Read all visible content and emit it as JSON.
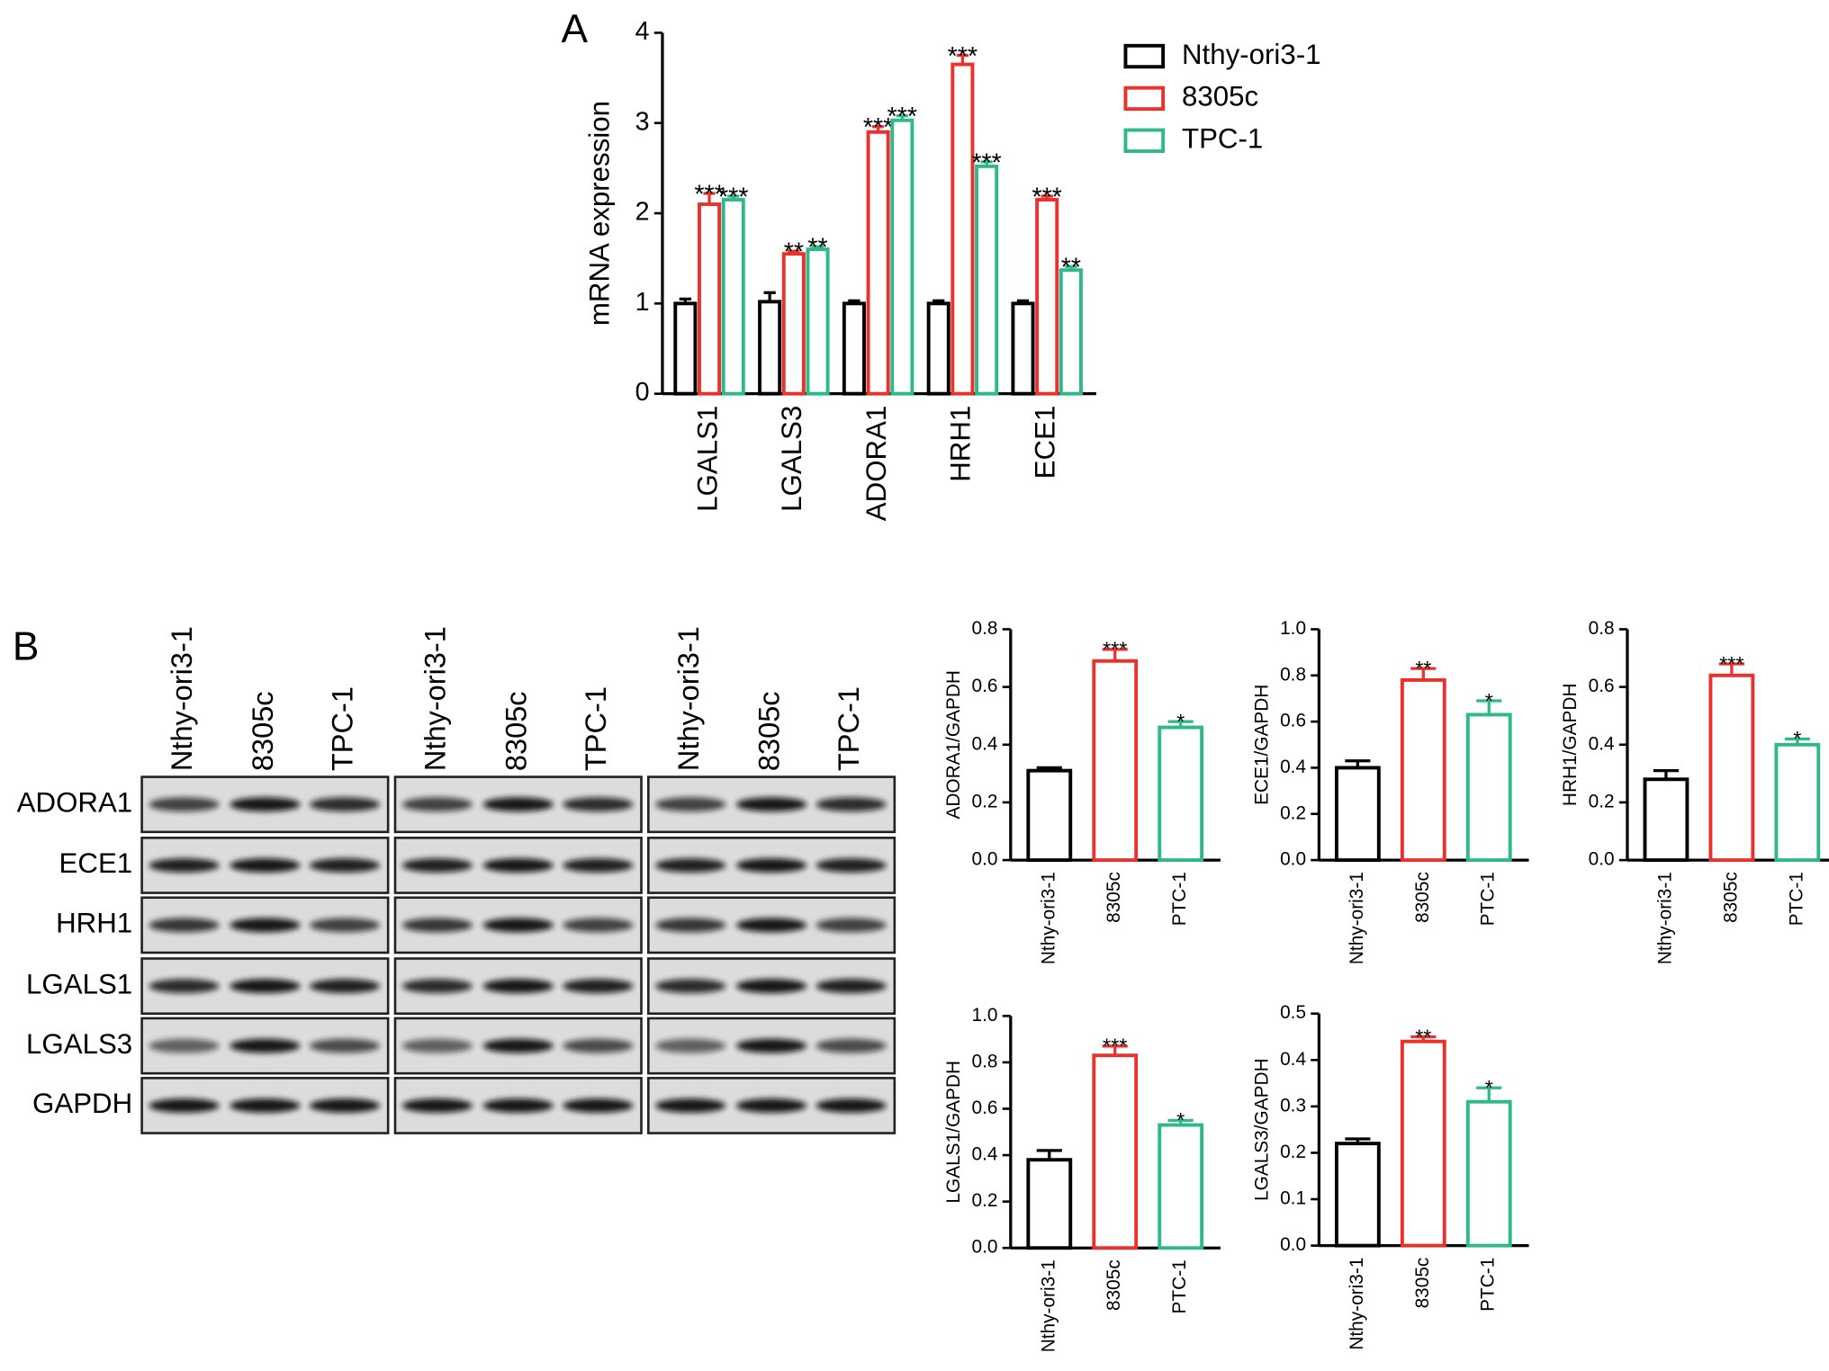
{
  "chart_data": [
    {
      "type": "bar",
      "panel_label": "A",
      "ylabel": "mRNA expression",
      "categories": [
        "LGALS1",
        "LGALS3",
        "ADORA1",
        "HRH1",
        "ECE1"
      ],
      "series": [
        {
          "name": "Nthy-ori3-1",
          "color": "#000000",
          "values": [
            1.0,
            1.02,
            1.0,
            1.0,
            1.0
          ],
          "errors": [
            0.05,
            0.1,
            0.03,
            0.03,
            0.03
          ],
          "annotations": [
            null,
            null,
            null,
            null,
            null
          ]
        },
        {
          "name": "8305c",
          "color": "#e8322b",
          "values": [
            2.1,
            1.55,
            2.9,
            3.65,
            2.15
          ],
          "errors": [
            0.12,
            0.03,
            0.06,
            0.1,
            0.04
          ],
          "annotations": [
            "***",
            "**",
            "***",
            "***",
            "***"
          ]
        },
        {
          "name": "TPC-1",
          "color": "#2fb98a",
          "values": [
            2.15,
            1.6,
            3.03,
            2.52,
            1.37
          ],
          "errors": [
            0.04,
            0.03,
            0.05,
            0.05,
            0.04
          ],
          "annotations": [
            "***",
            "**",
            "***",
            "***",
            "**"
          ]
        }
      ],
      "ylim": [
        0,
        4
      ],
      "yticks": [
        0,
        1,
        2,
        3,
        4
      ],
      "legend": "right"
    },
    {
      "type": "bar",
      "ylabel": "ADORA1/GAPDH",
      "categories": [
        "Nthy-ori3-1",
        "8305c",
        "PTC-1"
      ],
      "colors": [
        "#000000",
        "#e8322b",
        "#2fb98a"
      ],
      "values": [
        0.31,
        0.69,
        0.46
      ],
      "errors": [
        0.01,
        0.04,
        0.02
      ],
      "annotations": [
        null,
        "***",
        "*"
      ],
      "ylim": [
        0,
        0.8
      ],
      "yticks": [
        {
          "value": 0,
          "label": "0.0"
        },
        0.2,
        0.4,
        0.6,
        0.8
      ]
    },
    {
      "type": "bar",
      "ylabel": "ECE1/GAPDH",
      "categories": [
        "Nthy-ori3-1",
        "8305c",
        "PTC-1"
      ],
      "colors": [
        "#000000",
        "#e8322b",
        "#2fb98a"
      ],
      "values": [
        0.4,
        0.78,
        0.63
      ],
      "errors": [
        0.03,
        0.05,
        0.06
      ],
      "annotations": [
        null,
        "**",
        "*"
      ],
      "ylim": [
        0,
        1
      ],
      "yticks": [
        {
          "value": 0,
          "label": "0.0"
        },
        0.2,
        0.4,
        0.6,
        0.8,
        {
          "value": 1,
          "label": "1.0"
        }
      ]
    },
    {
      "type": "bar",
      "ylabel": "HRH1/GAPDH",
      "categories": [
        "Nthy-ori3-1",
        "8305c",
        "PTC-1"
      ],
      "colors": [
        "#000000",
        "#e8322b",
        "#2fb98a"
      ],
      "values": [
        0.28,
        0.64,
        0.4
      ],
      "errors": [
        0.03,
        0.04,
        0.02
      ],
      "annotations": [
        null,
        "***",
        "*"
      ],
      "ylim": [
        0,
        0.8
      ],
      "yticks": [
        {
          "value": 0,
          "label": "0.0"
        },
        0.2,
        0.4,
        0.6,
        0.8
      ]
    },
    {
      "type": "bar",
      "ylabel": "LGALS1/GAPDH",
      "categories": [
        "Nthy-ori3-1",
        "8305c",
        "PTC-1"
      ],
      "colors": [
        "#000000",
        "#e8322b",
        "#2fb98a"
      ],
      "values": [
        0.38,
        0.83,
        0.53
      ],
      "errors": [
        0.04,
        0.04,
        0.02
      ],
      "annotations": [
        null,
        "***",
        "*"
      ],
      "ylim": [
        0,
        1
      ],
      "yticks": [
        {
          "value": 0,
          "label": "0.0"
        },
        0.2,
        0.4,
        0.6,
        0.8,
        {
          "value": 1,
          "label": "1.0"
        }
      ]
    },
    {
      "type": "bar",
      "ylabel": "LGALS3/GAPDH",
      "categories": [
        "Nthy-ori3-1",
        "8305c",
        "PTC-1"
      ],
      "colors": [
        "#000000",
        "#e8322b",
        "#2fb98a"
      ],
      "values": [
        0.22,
        0.44,
        0.31
      ],
      "errors": [
        0.01,
        0.01,
        0.03
      ],
      "annotations": [
        null,
        "**",
        "*"
      ],
      "ylim": [
        0,
        0.5
      ],
      "yticks": [
        {
          "value": 0,
          "label": "0.0"
        },
        0.1,
        0.2,
        0.3,
        0.4,
        0.5
      ]
    }
  ],
  "blot": {
    "panel_label": "B",
    "groups": [
      [
        "Nthy-ori3-1",
        "8305c",
        "TPC-1"
      ],
      [
        "Nthy-ori3-1",
        "8305c",
        "TPC-1"
      ],
      [
        "Nthy-ori3-1",
        "8305c",
        "TPC-1"
      ]
    ],
    "proteins": [
      "ADORA1",
      "ECE1",
      "HRH1",
      "LGALS1",
      "LGALS3",
      "GAPDH"
    ]
  }
}
